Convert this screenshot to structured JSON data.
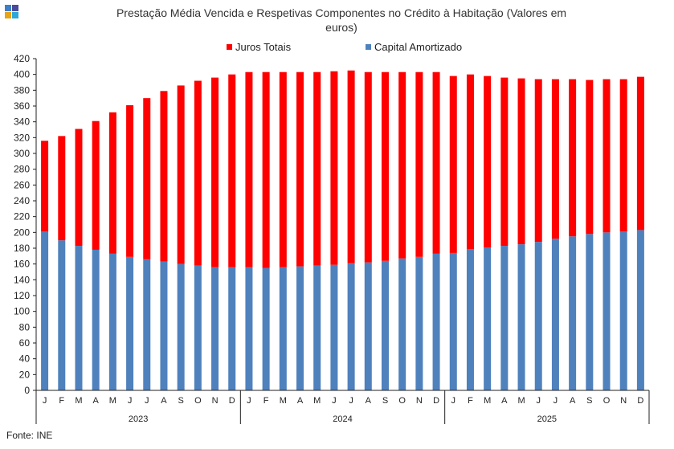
{
  "header": {
    "title_line1": "Prestação Média Vencida  e Respetivas Componentes  no Crédito à Habitação (Valores em",
    "title_line2": "euros)"
  },
  "footer": {
    "source": "Fonte: INE"
  },
  "logo": {
    "colors": [
      "#3d7fc8",
      "#4a4a9a",
      "#e8a317",
      "#2ea6d6"
    ]
  },
  "chart_data": {
    "type": "bar",
    "stacked": true,
    "title": "Prestação Média Vencida  e Respetivas Componentes  no Crédito à Habitação (Valores em euros)",
    "xlabel": "",
    "ylabel": "",
    "ylim": [
      0,
      420
    ],
    "yticks": [
      0,
      20,
      40,
      60,
      80,
      100,
      120,
      140,
      160,
      180,
      200,
      220,
      240,
      260,
      280,
      300,
      320,
      340,
      360,
      380,
      400,
      420
    ],
    "grid": false,
    "legend_position": "top",
    "categories": [
      "J",
      "F",
      "M",
      "A",
      "M",
      "J",
      "J",
      "A",
      "S",
      "O",
      "N",
      "D",
      "J",
      "F",
      "M",
      "A",
      "M",
      "J",
      "J",
      "A",
      "S",
      "O",
      "N",
      "D",
      "J",
      "F",
      "M",
      "A",
      "M",
      "J",
      "J",
      "A",
      "S",
      "O",
      "N",
      "D"
    ],
    "groups": [
      {
        "label": "2023",
        "count": 12
      },
      {
        "label": "2024",
        "count": 12
      },
      {
        "label": "2025",
        "count": 12
      }
    ],
    "series": [
      {
        "name": "Capital Amortizado",
        "color": "#4f81bd",
        "values": [
          201,
          190,
          183,
          178,
          173,
          169,
          166,
          163,
          160,
          158,
          156,
          156,
          156,
          155,
          156,
          157,
          158,
          159,
          161,
          162,
          164,
          167,
          169,
          173,
          174,
          179,
          181,
          183,
          185,
          188,
          192,
          195,
          198,
          200,
          201,
          203
        ]
      },
      {
        "name": "Juros Totais",
        "color": "#ff0000",
        "values": [
          115,
          132,
          148,
          163,
          179,
          192,
          204,
          216,
          226,
          234,
          240,
          244,
          247,
          248,
          247,
          246,
          245,
          245,
          244,
          241,
          239,
          236,
          234,
          230,
          224,
          221,
          217,
          213,
          210,
          206,
          202,
          199,
          195,
          194,
          193,
          194
        ]
      }
    ]
  }
}
